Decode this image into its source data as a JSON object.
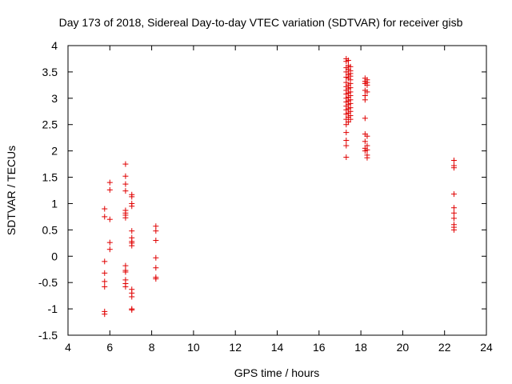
{
  "chart_data": {
    "type": "scatter",
    "title": "Day 173 of 2018, Sidereal Day-to-day VTEC variation (SDTVAR) for receiver gisb",
    "xlabel": "GPS time / hours",
    "ylabel": "SDTVAR / TECUs",
    "xlim": [
      4,
      24
    ],
    "ylim": [
      -1.5,
      4
    ],
    "xticks": [
      "4",
      "6",
      "8",
      "10",
      "12",
      "14",
      "16",
      "18",
      "20",
      "22",
      "24"
    ],
    "yticks": [
      "-1.5",
      "-1",
      "-0.5",
      "0",
      "0.5",
      "1",
      "1.5",
      "2",
      "2.5",
      "3",
      "3.5",
      "4"
    ],
    "grid": false,
    "marker": "+",
    "color": "#e00000",
    "series": [
      {
        "name": "gisb",
        "points": [
          [
            5.75,
            0.9
          ],
          [
            5.75,
            0.75
          ],
          [
            5.75,
            -0.1
          ],
          [
            5.75,
            -0.32
          ],
          [
            5.75,
            -0.48
          ],
          [
            5.75,
            -0.58
          ],
          [
            5.75,
            -1.05
          ],
          [
            5.75,
            -1.1
          ],
          [
            6.0,
            1.4
          ],
          [
            6.0,
            1.26
          ],
          [
            6.0,
            0.7
          ],
          [
            6.0,
            0.26
          ],
          [
            6.0,
            0.13
          ],
          [
            6.75,
            1.75
          ],
          [
            6.75,
            1.52
          ],
          [
            6.75,
            1.37
          ],
          [
            6.75,
            1.24
          ],
          [
            6.75,
            0.87
          ],
          [
            6.75,
            0.82
          ],
          [
            6.75,
            0.78
          ],
          [
            6.75,
            0.73
          ],
          [
            6.75,
            -0.18
          ],
          [
            6.75,
            -0.27
          ],
          [
            6.75,
            -0.3
          ],
          [
            6.75,
            -0.45
          ],
          [
            6.75,
            -0.52
          ],
          [
            6.75,
            -0.58
          ],
          [
            7.05,
            1.17
          ],
          [
            7.05,
            1.13
          ],
          [
            7.05,
            1.0
          ],
          [
            7.05,
            0.95
          ],
          [
            7.05,
            0.48
          ],
          [
            7.05,
            0.35
          ],
          [
            7.05,
            0.28
          ],
          [
            7.05,
            0.25
          ],
          [
            7.05,
            0.2
          ],
          [
            7.05,
            -0.63
          ],
          [
            7.05,
            -0.7
          ],
          [
            7.05,
            -0.77
          ],
          [
            7.05,
            -1.0
          ],
          [
            7.05,
            -1.02
          ],
          [
            8.2,
            0.57
          ],
          [
            8.2,
            0.48
          ],
          [
            8.2,
            0.3
          ],
          [
            8.2,
            -0.03
          ],
          [
            8.2,
            -0.22
          ],
          [
            8.2,
            -0.4
          ],
          [
            8.2,
            -0.43
          ],
          [
            17.3,
            3.75
          ],
          [
            17.3,
            3.7
          ],
          [
            17.3,
            3.58
          ],
          [
            17.3,
            3.5
          ],
          [
            17.3,
            3.4
          ],
          [
            17.3,
            3.3
          ],
          [
            17.3,
            3.22
          ],
          [
            17.3,
            3.15
          ],
          [
            17.3,
            3.08
          ],
          [
            17.3,
            3.0
          ],
          [
            17.3,
            2.93
          ],
          [
            17.3,
            2.85
          ],
          [
            17.3,
            2.78
          ],
          [
            17.3,
            2.7
          ],
          [
            17.3,
            2.6
          ],
          [
            17.3,
            2.5
          ],
          [
            17.3,
            2.35
          ],
          [
            17.3,
            2.2
          ],
          [
            17.3,
            2.1
          ],
          [
            17.3,
            1.88
          ],
          [
            17.4,
            3.72
          ],
          [
            17.4,
            3.62
          ],
          [
            17.4,
            3.55
          ],
          [
            17.4,
            3.45
          ],
          [
            17.4,
            3.38
          ],
          [
            17.4,
            3.25
          ],
          [
            17.4,
            3.18
          ],
          [
            17.4,
            3.1
          ],
          [
            17.4,
            3.02
          ],
          [
            17.4,
            2.95
          ],
          [
            17.4,
            2.88
          ],
          [
            17.4,
            2.8
          ],
          [
            17.4,
            2.72
          ],
          [
            17.4,
            2.64
          ],
          [
            17.4,
            2.55
          ],
          [
            17.5,
            3.6
          ],
          [
            17.5,
            3.52
          ],
          [
            17.5,
            3.47
          ],
          [
            17.5,
            3.42
          ],
          [
            17.5,
            3.35
          ],
          [
            17.5,
            3.28
          ],
          [
            17.5,
            3.2
          ],
          [
            17.5,
            3.12
          ],
          [
            17.5,
            3.05
          ],
          [
            17.5,
            2.97
          ],
          [
            17.5,
            2.9
          ],
          [
            17.5,
            2.82
          ],
          [
            17.5,
            2.75
          ],
          [
            17.5,
            2.67
          ],
          [
            17.5,
            2.6
          ],
          [
            18.2,
            3.38
          ],
          [
            18.2,
            3.32
          ],
          [
            18.2,
            3.28
          ],
          [
            18.2,
            3.15
          ],
          [
            18.2,
            3.05
          ],
          [
            18.2,
            2.97
          ],
          [
            18.2,
            2.62
          ],
          [
            18.2,
            2.32
          ],
          [
            18.2,
            2.18
          ],
          [
            18.2,
            2.05
          ],
          [
            18.2,
            2.0
          ],
          [
            18.3,
            3.35
          ],
          [
            18.3,
            3.3
          ],
          [
            18.3,
            3.25
          ],
          [
            18.3,
            3.12
          ],
          [
            18.3,
            2.28
          ],
          [
            18.3,
            2.1
          ],
          [
            18.3,
            2.02
          ],
          [
            18.3,
            1.92
          ],
          [
            18.3,
            1.87
          ],
          [
            22.45,
            1.82
          ],
          [
            22.45,
            1.72
          ],
          [
            22.45,
            1.68
          ],
          [
            22.45,
            1.18
          ],
          [
            22.45,
            0.92
          ],
          [
            22.45,
            0.82
          ],
          [
            22.45,
            0.72
          ],
          [
            22.45,
            0.6
          ],
          [
            22.45,
            0.55
          ],
          [
            22.45,
            0.5
          ]
        ]
      }
    ]
  }
}
